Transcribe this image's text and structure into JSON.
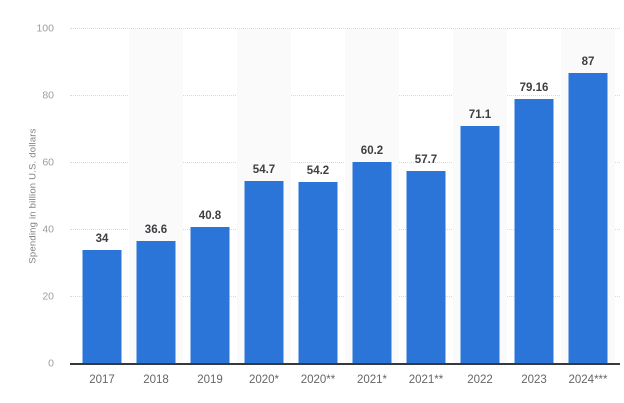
{
  "chart": {
    "y_axis_title": "Spending in billion U.S. dollars"
  },
  "chart_data": {
    "type": "bar",
    "categories": [
      "2017",
      "2018",
      "2019",
      "2020*",
      "2020**",
      "2021*",
      "2021**",
      "2022",
      "2023",
      "2024***"
    ],
    "values": [
      34,
      36.6,
      40.8,
      54.7,
      54.2,
      60.2,
      57.7,
      71.1,
      79.16,
      87
    ],
    "value_labels": [
      "34",
      "36.6",
      "40.8",
      "54.7",
      "54.2",
      "60.2",
      "57.7",
      "71.1",
      "79.16",
      "87"
    ],
    "title": "",
    "xlabel": "",
    "ylabel": "Spending in billion U.S. dollars",
    "ylim": [
      0,
      100
    ],
    "yticks": [
      0,
      20,
      40,
      60,
      80,
      100
    ],
    "grid": "horizontal-dotted",
    "legend": "none",
    "band_pattern": "alternating columns shaded starting with second column",
    "colors": {
      "bar": "#2b74d8",
      "band": "#fafafa",
      "gridline": "#d9d9d9",
      "axis_line": "#35383c",
      "value_label": "#3d3f42",
      "x_tick_label": "#666666",
      "y_tick_label": "#9e9e9e",
      "y_axis_title": "#808080",
      "background": "#ffffff"
    }
  }
}
